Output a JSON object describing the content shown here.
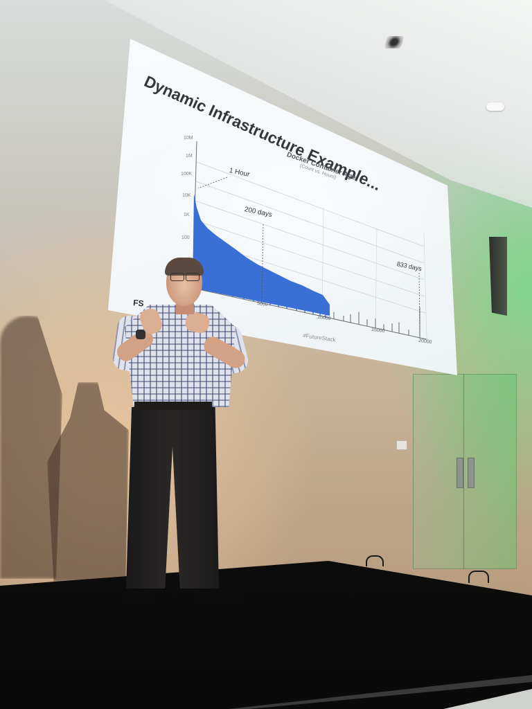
{
  "slide": {
    "title": "Dynamic Infrastructure Example...",
    "chart_title": "Docker Container Age",
    "chart_subtitle": "(Count vs. Hours)",
    "logo_text": "FS",
    "hashtag": "#FutureStack"
  },
  "chart_data": {
    "type": "bar",
    "title": "Docker Container Age",
    "subtitle": "(Count vs. Hours)",
    "x_tick_labels": [
      "5000",
      "10000",
      "15000",
      "20000"
    ],
    "y_tick_labels": [
      "10M",
      "1M",
      "100K",
      "10K",
      "1K",
      "100"
    ],
    "y_scale": "log",
    "annotations": [
      {
        "label": "1 Hour",
        "x": 1
      },
      {
        "label": "200 days",
        "x": 4800
      },
      {
        "label": "833 days",
        "x": 19992
      }
    ],
    "bar_color": "#3a6fd6"
  }
}
